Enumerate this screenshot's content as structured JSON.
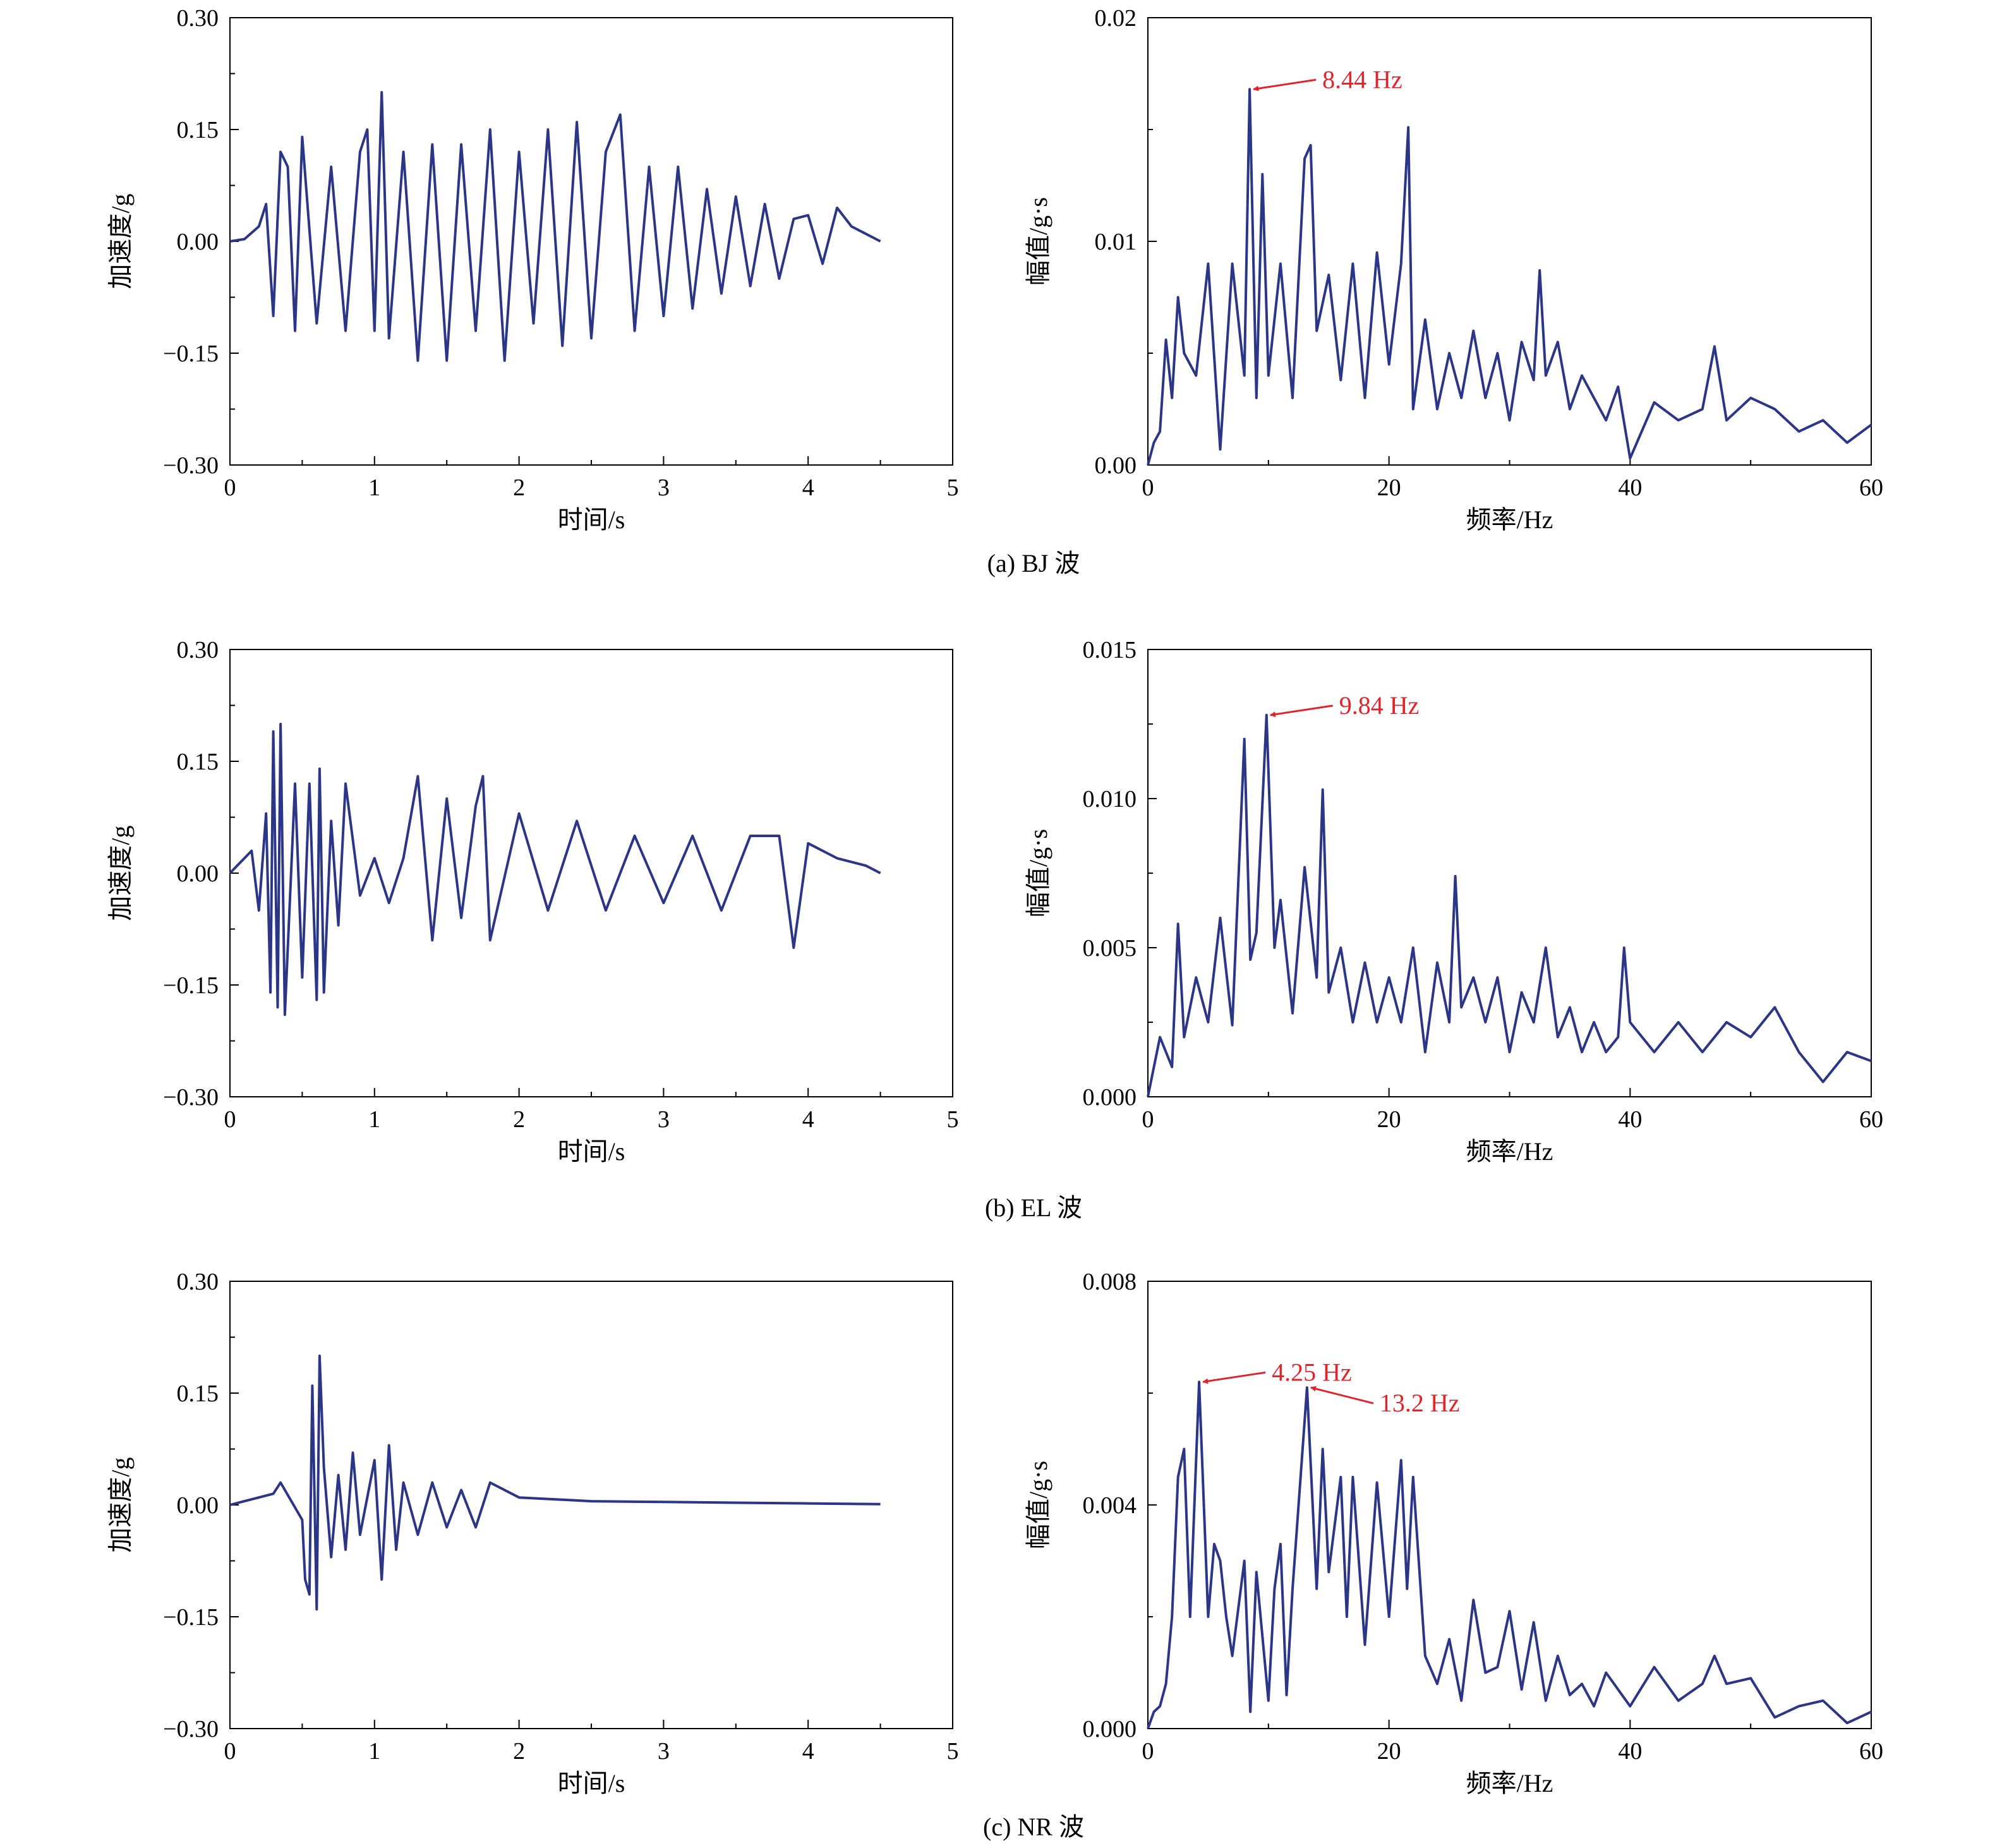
{
  "colors": {
    "series": "#2b3687",
    "annotation": "#e0242b",
    "axis": "#000000"
  },
  "figure": {
    "panels": [
      {
        "caption": "(a) BJ 波",
        "time": {
          "xlabel": "时间/s",
          "ylabel": "加速度/g",
          "xlim": [
            0,
            5
          ],
          "ylim": [
            -0.3,
            0.3
          ],
          "xticks": [
            "0",
            "1",
            "2",
            "3",
            "4",
            "5"
          ],
          "yticks": [
            "−0.30",
            "−0.15",
            "0.00",
            "0.15",
            "0.30"
          ]
        },
        "freq": {
          "xlabel": "频率/Hz",
          "ylabel": "幅值/g·s",
          "xlim": [
            0,
            60
          ],
          "ylim": [
            0,
            0.02
          ],
          "xticks": [
            "0",
            "20",
            "40",
            "60"
          ],
          "yticks": [
            "0.00",
            "0.01",
            "0.02"
          ],
          "annotations": [
            {
              "text": "8.44 Hz",
              "x": 8.44,
              "y": 0.0168
            }
          ]
        }
      },
      {
        "caption": "(b) EL 波",
        "time": {
          "xlabel": "时间/s",
          "ylabel": "加速度/g",
          "xlim": [
            0,
            5
          ],
          "ylim": [
            -0.3,
            0.3
          ],
          "xticks": [
            "0",
            "1",
            "2",
            "3",
            "4",
            "5"
          ],
          "yticks": [
            "−0.30",
            "−0.15",
            "0.00",
            "0.15",
            "0.30"
          ]
        },
        "freq": {
          "xlabel": "频率/Hz",
          "ylabel": "幅值/g·s",
          "xlim": [
            0,
            60
          ],
          "ylim": [
            0,
            0.015
          ],
          "xticks": [
            "0",
            "20",
            "40",
            "60"
          ],
          "yticks": [
            "0.000",
            "0.005",
            "0.010",
            "0.015"
          ],
          "annotations": [
            {
              "text": "9.84 Hz",
              "x": 9.84,
              "y": 0.0128
            }
          ]
        }
      },
      {
        "caption": "(c) NR 波",
        "time": {
          "xlabel": "时间/s",
          "ylabel": "加速度/g",
          "xlim": [
            0,
            5
          ],
          "ylim": [
            -0.3,
            0.3
          ],
          "xticks": [
            "0",
            "1",
            "2",
            "3",
            "4",
            "5"
          ],
          "yticks": [
            "−0.30",
            "−0.15",
            "0.00",
            "0.15",
            "0.30"
          ]
        },
        "freq": {
          "xlabel": "频率/Hz",
          "ylabel": "幅值/g·s",
          "xlim": [
            0,
            60
          ],
          "ylim": [
            0,
            0.008
          ],
          "xticks": [
            "0",
            "20",
            "40",
            "60"
          ],
          "yticks": [
            "0.000",
            "0.004",
            "0.008"
          ],
          "annotations": [
            {
              "text": "4.25 Hz",
              "x": 4.25,
              "y": 0.0062
            },
            {
              "text": "13.2 Hz",
              "x": 13.2,
              "y": 0.0061
            }
          ]
        }
      }
    ]
  },
  "chart_data": [
    {
      "type": "line",
      "xlabel": "时间/s",
      "ylabel": "加速度/g",
      "xlim": [
        0,
        5
      ],
      "ylim": [
        -0.3,
        0.3
      ],
      "series": [
        {
          "x": [
            0,
            0.1,
            0.2,
            0.25,
            0.3,
            0.35,
            0.4,
            0.45,
            0.5,
            0.6,
            0.7,
            0.8,
            0.9,
            0.95,
            1.0,
            1.05,
            1.1,
            1.2,
            1.3,
            1.4,
            1.5,
            1.6,
            1.7,
            1.8,
            1.9,
            2.0,
            2.1,
            2.2,
            2.3,
            2.4,
            2.5,
            2.6,
            2.7,
            2.8,
            2.9,
            3.0,
            3.1,
            3.2,
            3.3,
            3.4,
            3.5,
            3.6,
            3.7,
            3.8,
            3.9,
            4.0,
            4.1,
            4.2,
            4.3,
            4.4,
            4.5
          ],
          "y": [
            0,
            0.003,
            0.02,
            0.05,
            -0.1,
            0.12,
            0.1,
            -0.12,
            0.14,
            -0.11,
            0.1,
            -0.12,
            0.12,
            0.15,
            -0.12,
            0.2,
            -0.13,
            0.12,
            -0.16,
            0.13,
            -0.16,
            0.13,
            -0.12,
            0.15,
            -0.16,
            0.12,
            -0.11,
            0.15,
            -0.14,
            0.16,
            -0.13,
            0.12,
            0.17,
            -0.12,
            0.1,
            -0.1,
            0.1,
            -0.09,
            0.07,
            -0.07,
            0.06,
            -0.06,
            0.05,
            -0.05,
            0.03,
            0.035,
            -0.03,
            0.045,
            0.02,
            0.01,
            0
          ]
        }
      ]
    },
    {
      "type": "line",
      "xlabel": "频率/Hz",
      "ylabel": "幅值/g·s",
      "xlim": [
        0,
        60
      ],
      "ylim": [
        0,
        0.02
      ],
      "series": [
        {
          "x": [
            0,
            0.5,
            1,
            1.5,
            2,
            2.5,
            3,
            4,
            5,
            6,
            7,
            8,
            8.44,
            9,
            9.5,
            10,
            11,
            12,
            13,
            13.5,
            14,
            15,
            16,
            17,
            18,
            19,
            20,
            21,
            21.6,
            22,
            23,
            24,
            25,
            26,
            27,
            28,
            29,
            30,
            31,
            32,
            32.5,
            33,
            34,
            35,
            36,
            37,
            38,
            39,
            40,
            42,
            44,
            46,
            47,
            48,
            50,
            52,
            54,
            56,
            58,
            60
          ],
          "y": [
            0,
            0.001,
            0.0015,
            0.0056,
            0.003,
            0.0075,
            0.005,
            0.004,
            0.009,
            0.0007,
            0.009,
            0.004,
            0.0168,
            0.003,
            0.013,
            0.004,
            0.009,
            0.003,
            0.0137,
            0.0143,
            0.006,
            0.0085,
            0.0038,
            0.009,
            0.003,
            0.0095,
            0.0045,
            0.009,
            0.0151,
            0.0025,
            0.0065,
            0.0025,
            0.005,
            0.003,
            0.006,
            0.003,
            0.005,
            0.002,
            0.0055,
            0.0038,
            0.0087,
            0.004,
            0.0055,
            0.0025,
            0.004,
            0.003,
            0.002,
            0.0035,
            0.0003,
            0.0028,
            0.002,
            0.0025,
            0.0053,
            0.002,
            0.003,
            0.0025,
            0.0015,
            0.002,
            0.001,
            0.0018
          ]
        }
      ]
    },
    {
      "type": "line",
      "xlabel": "时间/s",
      "ylabel": "加速度/g",
      "xlim": [
        0,
        5
      ],
      "ylim": [
        -0.3,
        0.3
      ],
      "series": [
        {
          "x": [
            0,
            0.15,
            0.2,
            0.25,
            0.28,
            0.3,
            0.33,
            0.35,
            0.38,
            0.45,
            0.5,
            0.55,
            0.6,
            0.62,
            0.65,
            0.7,
            0.75,
            0.8,
            0.9,
            1.0,
            1.1,
            1.2,
            1.3,
            1.4,
            1.5,
            1.6,
            1.7,
            1.75,
            1.8,
            2.0,
            2.2,
            2.4,
            2.6,
            2.8,
            3.0,
            3.2,
            3.4,
            3.6,
            3.8,
            3.9,
            4.0,
            4.2,
            4.4,
            4.5
          ],
          "y": [
            0,
            0.03,
            -0.05,
            0.08,
            -0.16,
            0.19,
            -0.18,
            0.2,
            -0.19,
            0.12,
            -0.14,
            0.12,
            -0.17,
            0.14,
            -0.16,
            0.07,
            -0.07,
            0.12,
            -0.03,
            0.02,
            -0.04,
            0.02,
            0.13,
            -0.09,
            0.1,
            -0.06,
            0.09,
            0.13,
            -0.09,
            0.08,
            -0.05,
            0.07,
            -0.05,
            0.05,
            -0.04,
            0.05,
            -0.05,
            0.05,
            0.05,
            -0.1,
            0.04,
            0.02,
            0.01,
            0
          ]
        }
      ]
    },
    {
      "type": "line",
      "xlabel": "频率/Hz",
      "ylabel": "幅值/g·s",
      "xlim": [
        0,
        60
      ],
      "ylim": [
        0,
        0.015
      ],
      "series": [
        {
          "x": [
            0,
            1,
            2,
            2.5,
            3,
            4,
            5,
            6,
            7,
            8,
            8.5,
            9,
            9.84,
            10.5,
            11,
            12,
            13,
            14,
            14.5,
            15,
            16,
            17,
            18,
            19,
            20,
            21,
            22,
            23,
            24,
            25,
            25.5,
            26,
            27,
            28,
            29,
            30,
            31,
            32,
            33,
            34,
            35,
            36,
            37,
            38,
            39,
            39.5,
            40,
            42,
            44,
            46,
            48,
            50,
            52,
            54,
            56,
            58,
            60
          ],
          "y": [
            0,
            0.002,
            0.001,
            0.0058,
            0.002,
            0.004,
            0.0025,
            0.006,
            0.0024,
            0.012,
            0.0046,
            0.0055,
            0.0128,
            0.005,
            0.0066,
            0.0028,
            0.0077,
            0.004,
            0.0103,
            0.0035,
            0.005,
            0.0025,
            0.0045,
            0.0025,
            0.004,
            0.0025,
            0.005,
            0.0015,
            0.0045,
            0.0025,
            0.0074,
            0.003,
            0.004,
            0.0025,
            0.004,
            0.0015,
            0.0035,
            0.0025,
            0.005,
            0.002,
            0.003,
            0.0015,
            0.0025,
            0.0015,
            0.002,
            0.005,
            0.0025,
            0.0015,
            0.0025,
            0.0015,
            0.0025,
            0.002,
            0.003,
            0.0015,
            0.0005,
            0.0015,
            0.0012
          ]
        }
      ]
    },
    {
      "type": "line",
      "xlabel": "时间/s",
      "ylabel": "加速度/g",
      "xlim": [
        0,
        5
      ],
      "ylim": [
        -0.3,
        0.3
      ],
      "series": [
        {
          "x": [
            0,
            0.3,
            0.35,
            0.5,
            0.52,
            0.55,
            0.57,
            0.6,
            0.62,
            0.65,
            0.7,
            0.75,
            0.8,
            0.85,
            0.9,
            1.0,
            1.05,
            1.1,
            1.15,
            1.2,
            1.3,
            1.4,
            1.5,
            1.6,
            1.7,
            1.8,
            2.0,
            2.5,
            3.0,
            3.5,
            4.0,
            4.5
          ],
          "y": [
            0,
            0.015,
            0.03,
            -0.02,
            -0.1,
            -0.12,
            0.16,
            -0.14,
            0.2,
            0.05,
            -0.07,
            0.04,
            -0.06,
            0.07,
            -0.04,
            0.06,
            -0.1,
            0.08,
            -0.06,
            0.03,
            -0.04,
            0.03,
            -0.03,
            0.02,
            -0.03,
            0.03,
            0.01,
            0.005,
            0.004,
            0.003,
            0.002,
            0.001
          ]
        }
      ]
    },
    {
      "type": "line",
      "xlabel": "频率/Hz",
      "ylabel": "幅值/g·s",
      "xlim": [
        0,
        60
      ],
      "ylim": [
        0,
        0.008
      ],
      "series": [
        {
          "x": [
            0,
            0.5,
            1,
            1.5,
            2,
            2.5,
            3,
            3.5,
            4.25,
            5,
            5.5,
            6,
            6.5,
            7,
            8,
            8.5,
            9,
            10,
            10.5,
            11,
            11.5,
            12,
            13.2,
            14,
            14.5,
            15,
            16,
            16.5,
            17,
            18,
            19,
            20,
            21,
            21.5,
            22,
            23,
            24,
            25,
            26,
            27,
            28,
            29,
            30,
            31,
            32,
            33,
            34,
            35,
            36,
            37,
            38,
            40,
            42,
            44,
            46,
            47,
            48,
            50,
            52,
            54,
            56,
            58,
            60
          ],
          "y": [
            0,
            0.0003,
            0.0004,
            0.0008,
            0.002,
            0.0045,
            0.005,
            0.002,
            0.0062,
            0.002,
            0.0033,
            0.003,
            0.002,
            0.0013,
            0.003,
            0.0003,
            0.0028,
            0.0005,
            0.0025,
            0.0033,
            0.0006,
            0.0025,
            0.0061,
            0.0025,
            0.005,
            0.0028,
            0.0045,
            0.002,
            0.0045,
            0.0015,
            0.0044,
            0.002,
            0.0048,
            0.0025,
            0.0045,
            0.0013,
            0.0008,
            0.0016,
            0.0005,
            0.0023,
            0.001,
            0.0011,
            0.0021,
            0.0007,
            0.0019,
            0.0005,
            0.0013,
            0.0006,
            0.0008,
            0.0004,
            0.001,
            0.0004,
            0.0011,
            0.0005,
            0.0008,
            0.0013,
            0.0008,
            0.0009,
            0.0002,
            0.0004,
            0.0005,
            0.0001,
            0.0003
          ]
        }
      ]
    }
  ]
}
